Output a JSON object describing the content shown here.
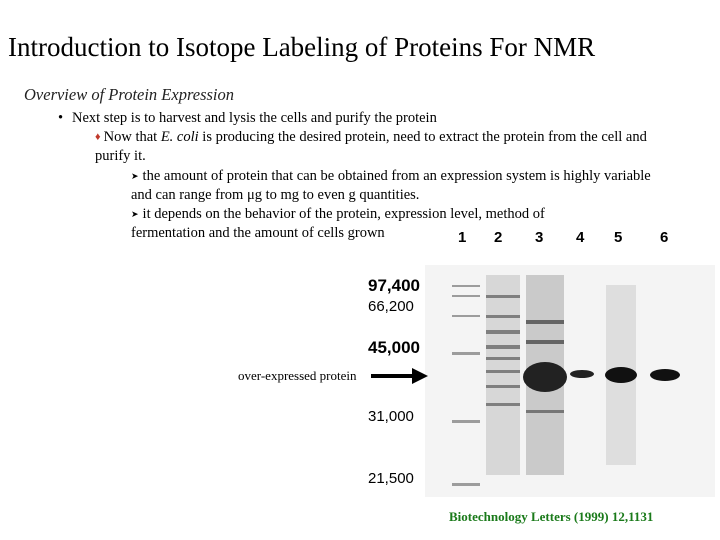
{
  "title": "Introduction to Isotope Labeling of Proteins For NMR",
  "subtitle": "Overview of Protein Expression",
  "bullet_main": {
    "symbol": "•",
    "text": "Next step is to harvest and lysis the cells and purify the protein"
  },
  "sub_bullet": {
    "symbol": "♦",
    "text_before": "Now that ",
    "organism": "E. coli",
    "text_after": " is producing the desired protein, need to extract the protein from the cell and purify it."
  },
  "points": [
    {
      "symbol": "➤",
      "text": "the amount of protein that can be obtained from an expression system is highly variable and can range from μg to mg to even g quantities."
    },
    {
      "symbol": "➤",
      "line1": "it depends on the behavior of the protein, expression level, method of",
      "line2": "fermentation and the amount of cells grown"
    }
  ],
  "gel": {
    "lanes": [
      "1",
      "2",
      "3",
      "4",
      "5",
      "6"
    ],
    "markers": [
      "97,400",
      "66,200",
      "45,000",
      "31,000",
      "21,500"
    ],
    "annotation": "over-expressed protein"
  },
  "citation": "Biotechnology Letters (1999) 12,1131"
}
